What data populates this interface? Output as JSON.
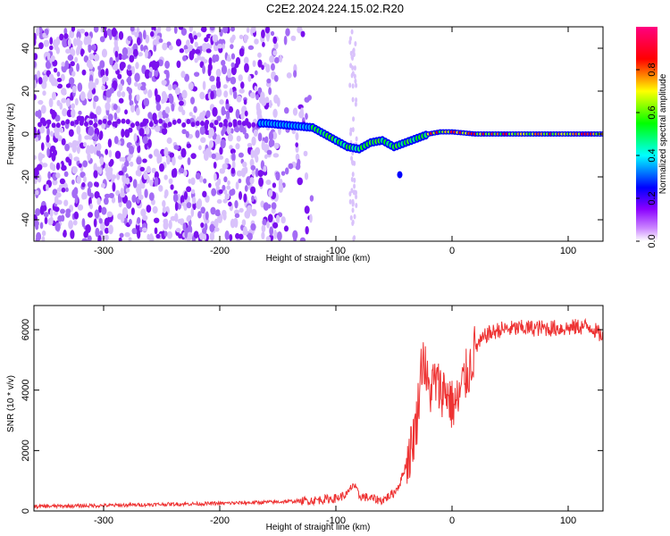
{
  "title": "C2E2.2024.224.15.02.R20",
  "chart_data": [
    {
      "type": "heatmap",
      "xlabel": "Height of straight line (km)",
      "ylabel": "Frequency (Hz)",
      "xlim": [
        -360,
        130
      ],
      "ylim": [
        -50,
        50
      ],
      "x_ticks": [
        -300,
        -200,
        -100,
        0,
        100
      ],
      "y_ticks": [
        -40,
        -20,
        0,
        20,
        40
      ],
      "colorbar": {
        "label": "Normalized spectral amplitude",
        "range": [
          0,
          1
        ],
        "ticks": [
          "0.0",
          "0.2",
          "0.4",
          "0.6",
          "0.8"
        ],
        "colors": [
          "#ffffff",
          "#cc88ff",
          "#8a00ff",
          "#0000ff",
          "#00ffff",
          "#00ff00",
          "#ffff00",
          "#ff0000",
          "#ff0080"
        ]
      },
      "ridge": {
        "x": [
          -160,
          -140,
          -120,
          -110,
          -100,
          -90,
          -80,
          -70,
          -60,
          -50,
          -40,
          -30,
          -20,
          -10,
          0,
          20,
          60,
          100,
          130
        ],
        "freq": [
          5,
          4,
          3,
          0,
          -3,
          -6,
          -7,
          -4,
          -3,
          -6,
          -4,
          -2,
          0,
          1,
          1,
          0,
          0,
          0,
          0
        ]
      }
    },
    {
      "type": "line",
      "xlabel": "Height of straight line (km)",
      "ylabel": "SNR (10 * v/v)",
      "xlim": [
        -360,
        130
      ],
      "ylim": [
        0,
        6800
      ],
      "x_ticks": [
        -300,
        -200,
        -100,
        0,
        100
      ],
      "y_ticks": [
        0,
        2000,
        4000,
        6000
      ],
      "color": "#ee3333",
      "x": [
        -360,
        -300,
        -250,
        -200,
        -150,
        -120,
        -100,
        -90,
        -85,
        -80,
        -70,
        -60,
        -50,
        -45,
        -40,
        -35,
        -30,
        -27,
        -25,
        -20,
        -15,
        -10,
        -5,
        0,
        5,
        10,
        15,
        20,
        25,
        30,
        35,
        40,
        60,
        80,
        100,
        110,
        120,
        125,
        130
      ],
      "y": [
        150,
        180,
        220,
        250,
        300,
        350,
        420,
        550,
        900,
        500,
        420,
        350,
        600,
        900,
        1500,
        2100,
        3100,
        4600,
        5200,
        3900,
        4300,
        4000,
        4000,
        3500,
        3600,
        4300,
        4700,
        5400,
        5600,
        5850,
        5900,
        6000,
        6050,
        6050,
        6050,
        6100,
        6100,
        5900,
        5800
      ]
    }
  ]
}
